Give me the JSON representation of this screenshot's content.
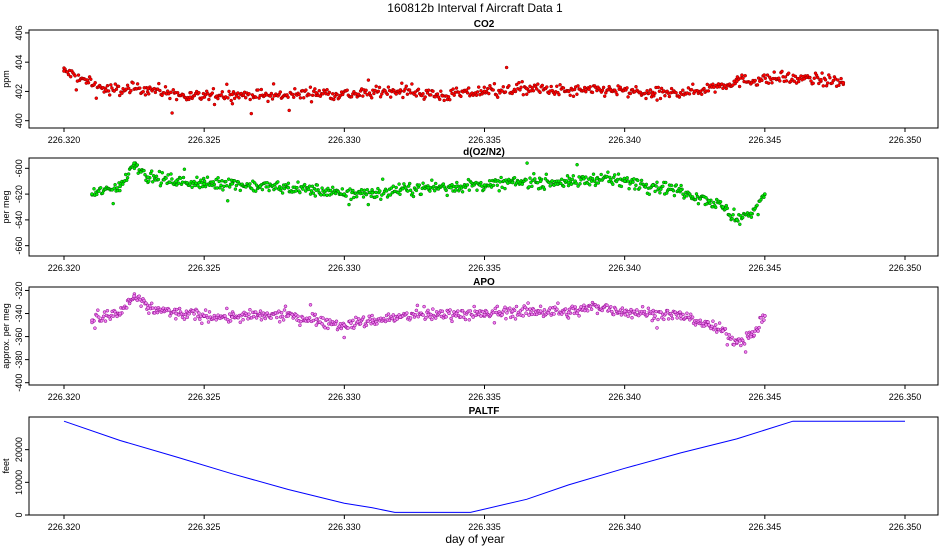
{
  "figure": {
    "title": "160812b   Interval f Aircraft Data 1",
    "xlabel": "day of year"
  },
  "chart_data": [
    {
      "type": "scatter",
      "title": "CO2",
      "ylabel": "ppm",
      "xlim": [
        226.32,
        226.35
      ],
      "ylim": [
        399.5,
        406.2
      ],
      "xticks": [
        "226.320",
        "226.325",
        "226.330",
        "226.335",
        "226.340",
        "226.345",
        "226.350"
      ],
      "yticks": [
        "400",
        "402",
        "404",
        "406"
      ],
      "marker_color": "#ff0000",
      "marker_edge_color": "#8b0000",
      "x_range": [
        226.32,
        226.3478
      ],
      "series": [
        {
          "x": [
            226.32,
            226.3215,
            226.323,
            226.3245,
            226.326,
            226.3275,
            226.329,
            226.3305,
            226.332,
            226.3335,
            226.335,
            226.3365,
            226.338,
            226.3395,
            226.341,
            226.3425,
            226.344,
            226.3455,
            226.347,
            226.3478
          ],
          "values": [
            403.4,
            402.1,
            402.2,
            401.6,
            401.8,
            401.7,
            401.9,
            401.8,
            402.1,
            401.7,
            402.0,
            402.2,
            402.0,
            402.1,
            401.8,
            402.0,
            402.7,
            402.9,
            402.8,
            402.6
          ]
        }
      ]
    },
    {
      "type": "scatter",
      "title": "d(O2/N2)",
      "ylabel": "per meg",
      "xlim": [
        226.319,
        226.3505
      ],
      "ylim": [
        -668,
        -592
      ],
      "xticks": [
        "226.320",
        "226.325",
        "226.330",
        "226.335",
        "226.340",
        "226.345",
        "226.350"
      ],
      "yticks": [
        "-600",
        "-620",
        "-640",
        "-660"
      ],
      "marker_color": "#00ee00",
      "marker_edge_color": "#006400",
      "x_range": [
        226.321,
        226.345
      ],
      "series": [
        {
          "x": [
            226.321,
            226.322,
            226.3225,
            226.323,
            226.324,
            226.325,
            226.326,
            226.327,
            226.328,
            226.329,
            226.33,
            226.331,
            226.332,
            226.333,
            226.334,
            226.335,
            226.336,
            226.337,
            226.338,
            226.339,
            226.34,
            226.341,
            226.342,
            226.343,
            226.3435,
            226.344,
            226.3445,
            226.345
          ],
          "values": [
            -620,
            -614,
            -596,
            -607,
            -610,
            -612,
            -612,
            -614,
            -615,
            -617,
            -620,
            -619,
            -617,
            -615,
            -614,
            -613,
            -611,
            -610,
            -611,
            -608,
            -610,
            -613,
            -617,
            -625,
            -630,
            -640,
            -635,
            -620
          ]
        }
      ]
    },
    {
      "type": "scatter",
      "title": "APO",
      "ylabel": "approx. per meg",
      "xlim": [
        226.319,
        226.3505
      ],
      "ylim": [
        -402,
        -317
      ],
      "xticks": [
        "226.320",
        "226.325",
        "226.330",
        "226.335",
        "226.340",
        "226.345",
        "226.350"
      ],
      "yticks": [
        "-320",
        "-340",
        "-360",
        "-380",
        "-400"
      ],
      "marker_color": "#ee82ee",
      "marker_edge_color": "#8b008b",
      "x_range": [
        226.321,
        226.345
      ],
      "series": [
        {
          "x": [
            226.321,
            226.322,
            226.3225,
            226.323,
            226.324,
            226.325,
            226.326,
            226.327,
            226.328,
            226.329,
            226.33,
            226.331,
            226.332,
            226.333,
            226.334,
            226.335,
            226.336,
            226.337,
            226.338,
            226.339,
            226.34,
            226.341,
            226.342,
            226.343,
            226.3435,
            226.344,
            226.3445,
            226.345
          ],
          "values": [
            -346,
            -340,
            -325,
            -335,
            -340,
            -342,
            -343,
            -342,
            -342,
            -345,
            -350,
            -346,
            -343,
            -341,
            -340,
            -341,
            -338,
            -338,
            -339,
            -334,
            -338,
            -340,
            -342,
            -350,
            -355,
            -365,
            -360,
            -342
          ]
        }
      ]
    },
    {
      "type": "line",
      "title": "PALTF",
      "ylabel": "feet",
      "xlim": [
        226.319,
        226.3505
      ],
      "ylim": [
        0,
        30000
      ],
      "xticks": [
        "226.320",
        "226.325",
        "226.330",
        "226.335",
        "226.340",
        "226.345",
        "226.350"
      ],
      "yticks": [
        "0",
        "10000",
        "20000"
      ],
      "line_color": "#0000ff",
      "series": [
        {
          "x": [
            226.32,
            226.322,
            226.324,
            226.326,
            226.328,
            226.33,
            226.331,
            226.3318,
            226.3345,
            226.3365,
            226.338,
            226.34,
            226.342,
            226.344,
            226.346,
            226.348,
            226.35
          ],
          "values": [
            28700,
            22800,
            17800,
            12600,
            7800,
            3600,
            2200,
            800,
            800,
            4800,
            9200,
            14300,
            19000,
            23300,
            28700,
            28700,
            28700
          ]
        }
      ]
    }
  ]
}
